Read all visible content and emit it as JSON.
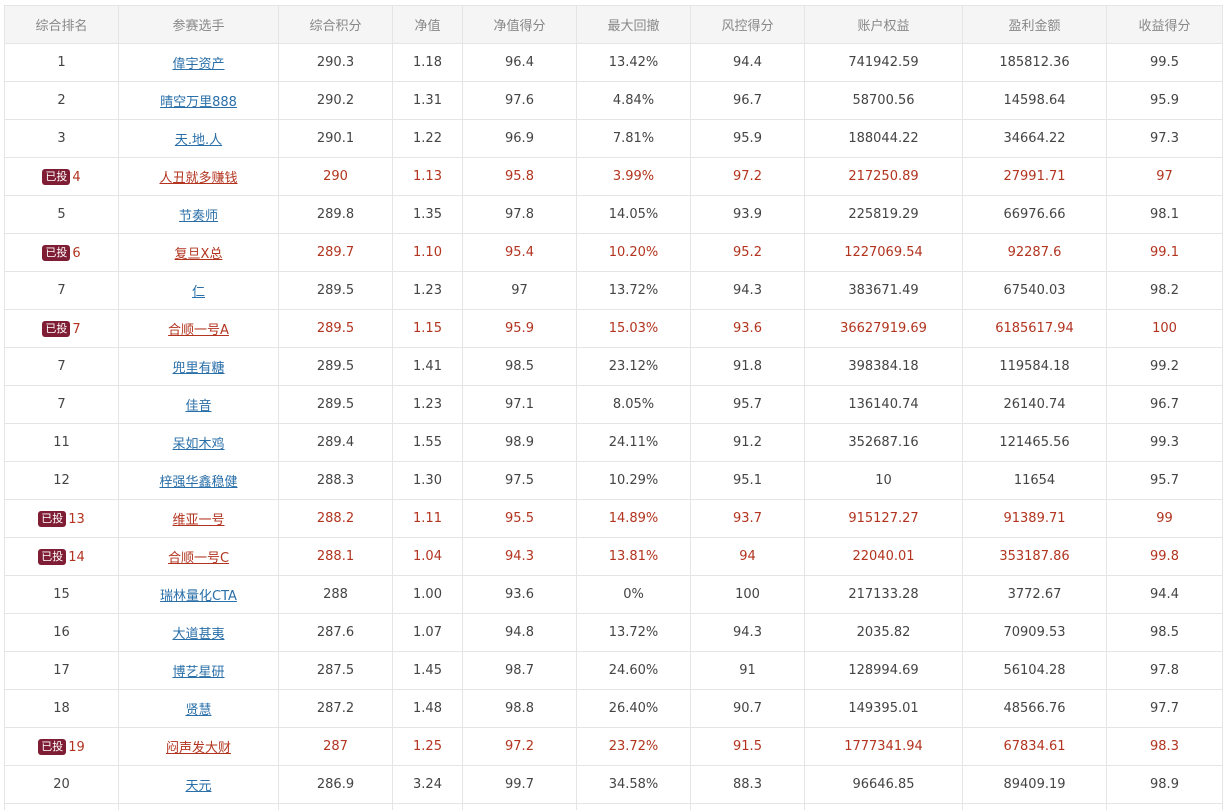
{
  "columns": [
    "综合排名",
    "参赛选手",
    "综合积分",
    "净值",
    "净值得分",
    "最大回撤",
    "风控得分",
    "账户权益",
    "盈利金额",
    "收益得分"
  ],
  "badge_label": "已投",
  "highlight_color": "#b2341f",
  "badge_color": "#7e1d34",
  "link_color": "#2a6fa8",
  "rows": [
    {
      "rank": "1",
      "name": "偉宇资产",
      "score": "290.3",
      "nav": "1.18",
      "nav_score": "96.4",
      "drawdown": "13.42%",
      "risk_score": "94.4",
      "equity": "741942.59",
      "profit": "185812.36",
      "return_score": "99.5",
      "invested": false
    },
    {
      "rank": "2",
      "name": "晴空万里888",
      "score": "290.2",
      "nav": "1.31",
      "nav_score": "97.6",
      "drawdown": "4.84%",
      "risk_score": "96.7",
      "equity": "58700.56",
      "profit": "14598.64",
      "return_score": "95.9",
      "invested": false
    },
    {
      "rank": "3",
      "name": "天.地.人",
      "score": "290.1",
      "nav": "1.22",
      "nav_score": "96.9",
      "drawdown": "7.81%",
      "risk_score": "95.9",
      "equity": "188044.22",
      "profit": "34664.22",
      "return_score": "97.3",
      "invested": false
    },
    {
      "rank": "4",
      "name": "人丑就多赚钱",
      "score": "290",
      "nav": "1.13",
      "nav_score": "95.8",
      "drawdown": "3.99%",
      "risk_score": "97.2",
      "equity": "217250.89",
      "profit": "27991.71",
      "return_score": "97",
      "invested": true
    },
    {
      "rank": "5",
      "name": "节奏师",
      "score": "289.8",
      "nav": "1.35",
      "nav_score": "97.8",
      "drawdown": "14.05%",
      "risk_score": "93.9",
      "equity": "225819.29",
      "profit": "66976.66",
      "return_score": "98.1",
      "invested": false
    },
    {
      "rank": "6",
      "name": "复旦X总",
      "score": "289.7",
      "nav": "1.10",
      "nav_score": "95.4",
      "drawdown": "10.20%",
      "risk_score": "95.2",
      "equity": "1227069.54",
      "profit": "92287.6",
      "return_score": "99.1",
      "invested": true
    },
    {
      "rank": "7",
      "name": "仁",
      "score": "289.5",
      "nav": "1.23",
      "nav_score": "97",
      "drawdown": "13.72%",
      "risk_score": "94.3",
      "equity": "383671.49",
      "profit": "67540.03",
      "return_score": "98.2",
      "invested": false
    },
    {
      "rank": "7",
      "name": "合顺一号A",
      "score": "289.5",
      "nav": "1.15",
      "nav_score": "95.9",
      "drawdown": "15.03%",
      "risk_score": "93.6",
      "equity": "36627919.69",
      "profit": "6185617.94",
      "return_score": "100",
      "invested": true
    },
    {
      "rank": "7",
      "name": "兜里有糖",
      "score": "289.5",
      "nav": "1.41",
      "nav_score": "98.5",
      "drawdown": "23.12%",
      "risk_score": "91.8",
      "equity": "398384.18",
      "profit": "119584.18",
      "return_score": "99.2",
      "invested": false
    },
    {
      "rank": "7",
      "name": "佳音",
      "score": "289.5",
      "nav": "1.23",
      "nav_score": "97.1",
      "drawdown": "8.05%",
      "risk_score": "95.7",
      "equity": "136140.74",
      "profit": "26140.74",
      "return_score": "96.7",
      "invested": false
    },
    {
      "rank": "11",
      "name": "呆如木鸡",
      "score": "289.4",
      "nav": "1.55",
      "nav_score": "98.9",
      "drawdown": "24.11%",
      "risk_score": "91.2",
      "equity": "352687.16",
      "profit": "121465.56",
      "return_score": "99.3",
      "invested": false
    },
    {
      "rank": "12",
      "name": "梓强华鑫稳健",
      "score": "288.3",
      "nav": "1.30",
      "nav_score": "97.5",
      "drawdown": "10.29%",
      "risk_score": "95.1",
      "equity": "10",
      "profit": "11654",
      "return_score": "95.7",
      "invested": false
    },
    {
      "rank": "13",
      "name": "维亚一号",
      "score": "288.2",
      "nav": "1.11",
      "nav_score": "95.5",
      "drawdown": "14.89%",
      "risk_score": "93.7",
      "equity": "915127.27",
      "profit": "91389.71",
      "return_score": "99",
      "invested": true
    },
    {
      "rank": "14",
      "name": "合顺一号C",
      "score": "288.1",
      "nav": "1.04",
      "nav_score": "94.3",
      "drawdown": "13.81%",
      "risk_score": "94",
      "equity": "22040.01",
      "profit": "353187.86",
      "return_score": "99.8",
      "invested": true
    },
    {
      "rank": "15",
      "name": "瑞林量化CTA",
      "score": "288",
      "nav": "1.00",
      "nav_score": "93.6",
      "drawdown": "0%",
      "risk_score": "100",
      "equity": "217133.28",
      "profit": "3772.67",
      "return_score": "94.4",
      "invested": false
    },
    {
      "rank": "16",
      "name": "大道甚夷",
      "score": "287.6",
      "nav": "1.07",
      "nav_score": "94.8",
      "drawdown": "13.72%",
      "risk_score": "94.3",
      "equity": "2035.82",
      "profit": "70909.53",
      "return_score": "98.5",
      "invested": false
    },
    {
      "rank": "17",
      "name": "博艺星研",
      "score": "287.5",
      "nav": "1.45",
      "nav_score": "98.7",
      "drawdown": "24.60%",
      "risk_score": "91",
      "equity": "128994.69",
      "profit": "56104.28",
      "return_score": "97.8",
      "invested": false
    },
    {
      "rank": "18",
      "name": "贤慧",
      "score": "287.2",
      "nav": "1.48",
      "nav_score": "98.8",
      "drawdown": "26.40%",
      "risk_score": "90.7",
      "equity": "149395.01",
      "profit": "48566.76",
      "return_score": "97.7",
      "invested": false
    },
    {
      "rank": "19",
      "name": "闷声发大财",
      "score": "287",
      "nav": "1.25",
      "nav_score": "97.2",
      "drawdown": "23.72%",
      "risk_score": "91.5",
      "equity": "1777341.94",
      "profit": "67834.61",
      "return_score": "98.3",
      "invested": true
    },
    {
      "rank": "20",
      "name": "天元",
      "score": "286.9",
      "nav": "3.24",
      "nav_score": "99.7",
      "drawdown": "34.58%",
      "risk_score": "88.3",
      "equity": "96646.85",
      "profit": "89409.19",
      "return_score": "98.9",
      "invested": false
    }
  ]
}
